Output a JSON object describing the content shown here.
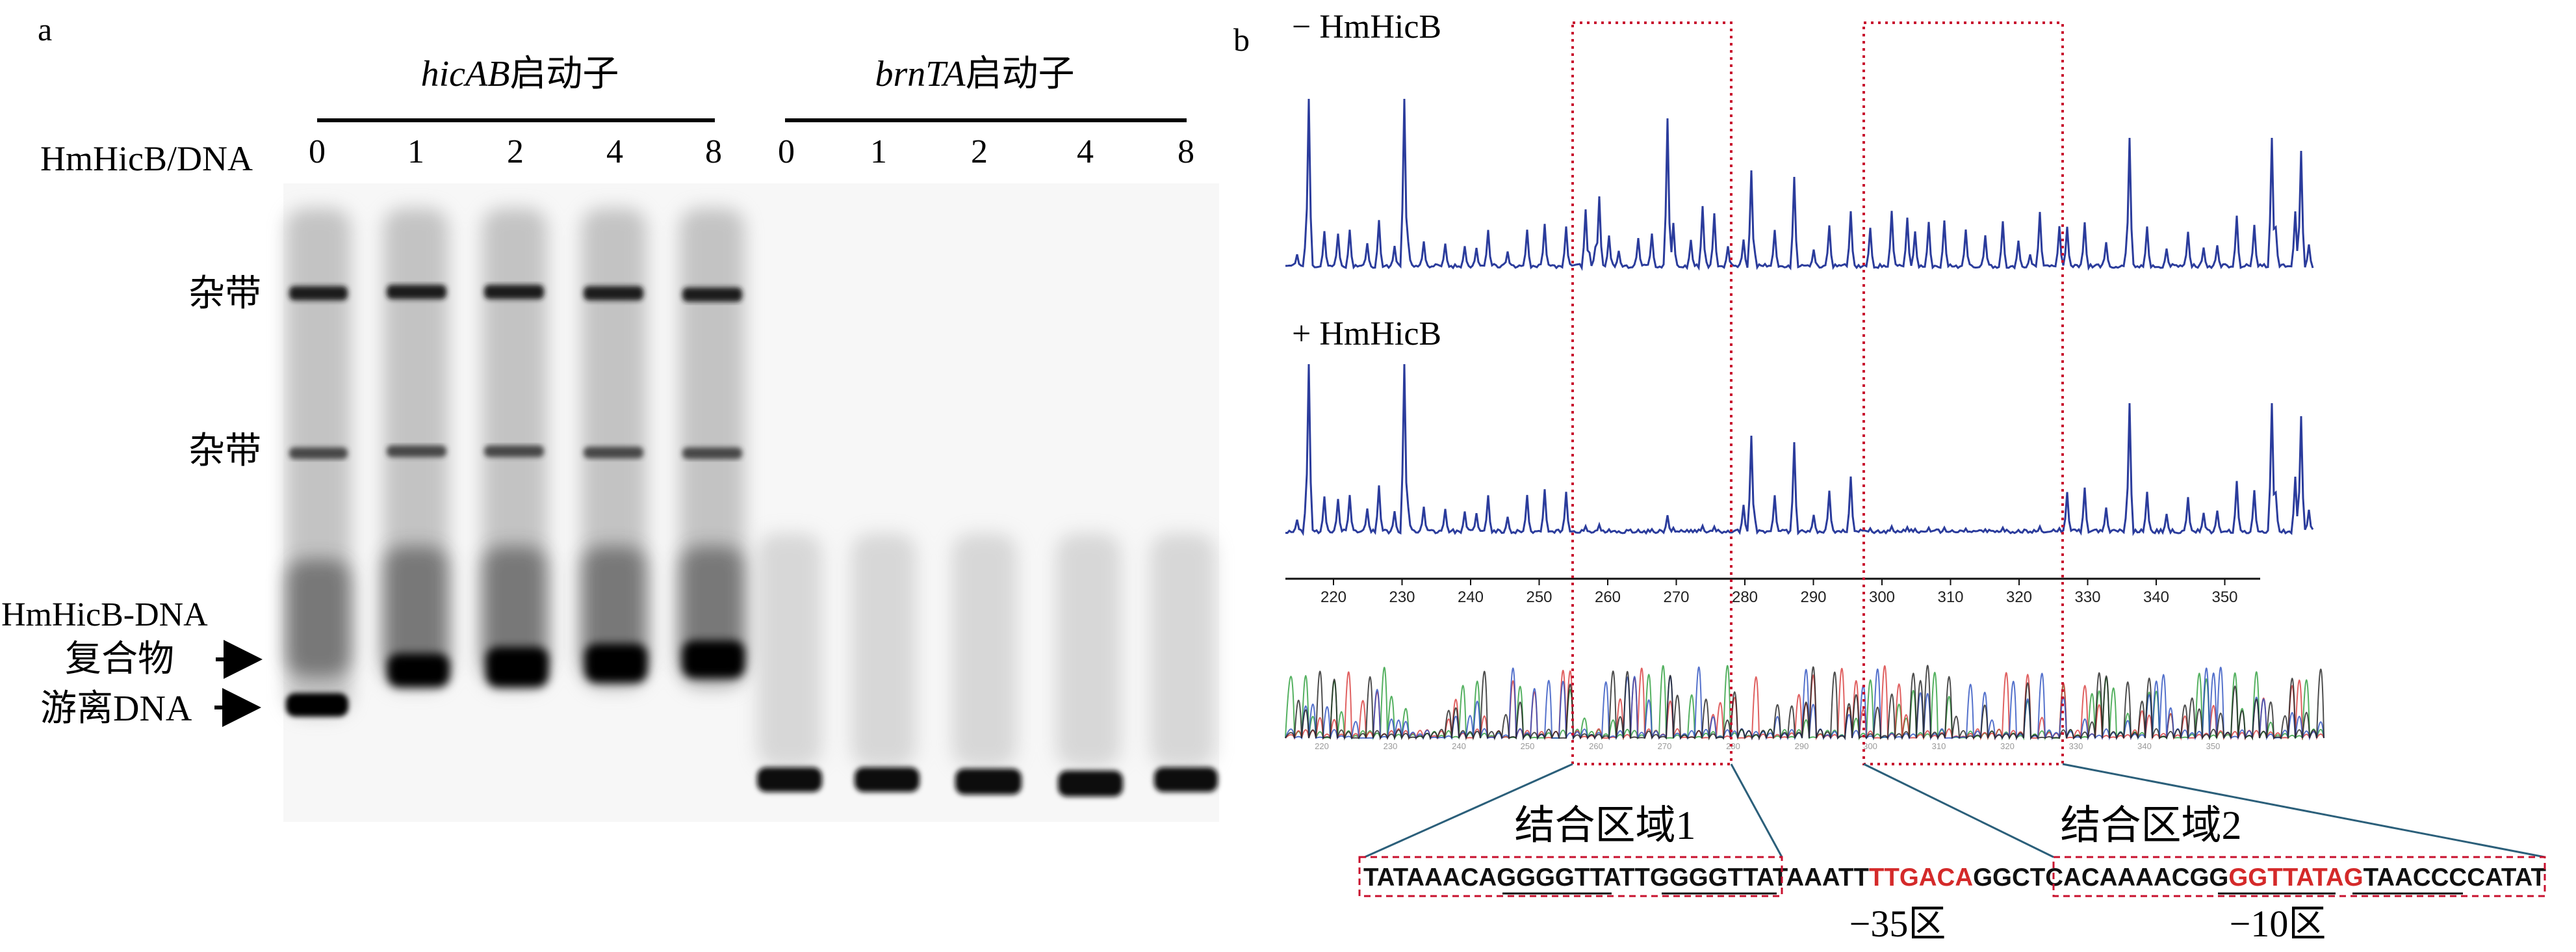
{
  "panel_a": {
    "label": "a",
    "group1": {
      "gene": "hicAB",
      "suffix": "启动子"
    },
    "group2": {
      "gene": "brnTA",
      "suffix": "启动子"
    },
    "ratio_label": "HmHicB/DNA",
    "lanes1": [
      "0",
      "1",
      "2",
      "4",
      "8"
    ],
    "lanes2": [
      "0",
      "1",
      "2",
      "4",
      "8"
    ],
    "band_labels": {
      "nonspecific_top": "杂带",
      "nonspecific_mid": "杂带",
      "complex_line1": "HmHicB-DNA",
      "complex_line2": "复合物",
      "free_dna": "游离DNA"
    }
  },
  "panel_b": {
    "label": "b",
    "trace_minus_label": "− HmHicB",
    "trace_plus_label": "+ HmHicB",
    "axis_ticks": [
      "220",
      "230",
      "240",
      "250",
      "260",
      "270",
      "280",
      "290",
      "300",
      "310",
      "320",
      "330",
      "340",
      "350"
    ],
    "chromatogram_ticks": [
      "220",
      "230",
      "240",
      "250",
      "260",
      "270",
      "280",
      "290",
      "300",
      "310",
      "320",
      "330",
      "340",
      "350"
    ],
    "region1_label": "结合区域1",
    "region2_label": "结合区域2",
    "sequence": [
      {
        "text": "TATAAACAG",
        "color": "#111111"
      },
      {
        "text": "GGGTTAT",
        "color": "#111111"
      },
      {
        "text": "T",
        "color": "#111111"
      },
      {
        "text": "GGGGTTAT",
        "color": "#111111"
      },
      {
        "text": "AAATT",
        "color": "#111111"
      },
      {
        "text": "TTGACA",
        "color": "#d42a2a"
      },
      {
        "text": "GGCTC",
        "color": "#111111"
      },
      {
        "text": "ACAAAACGG",
        "color": "#111111"
      },
      {
        "text": "GGTTATAG",
        "color": "#d42a2a"
      },
      {
        "text": "TAACCCCATAT",
        "color": "#111111"
      }
    ],
    "minus35_label": "−35区",
    "minus10_label": "−10区"
  },
  "colors": {
    "trace": "#2b3c9c",
    "dashed_box": "#c8102e",
    "connector": "#2b5f7a",
    "highlight": "#d42a2a"
  }
}
